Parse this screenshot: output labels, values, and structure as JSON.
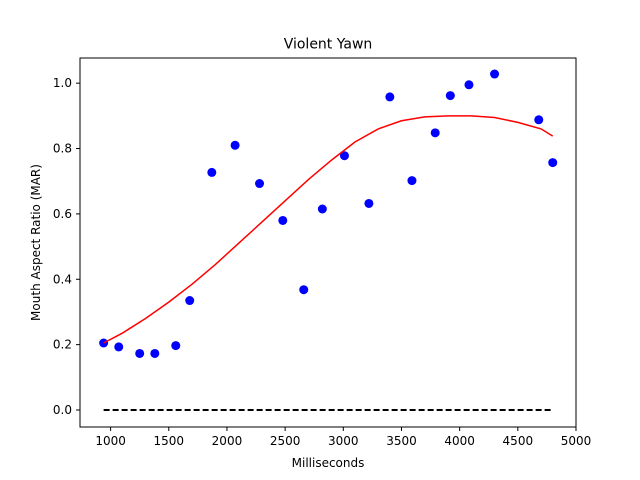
{
  "chart_data": {
    "type": "scatter",
    "title": "Violent Yawn",
    "xlabel": "Milliseconds",
    "ylabel": "Mouth Aspect Ratio (MAR)",
    "xlim": [
      737,
      5000
    ],
    "ylim": [
      -0.052,
      1.077
    ],
    "xticks": [
      1000,
      1500,
      2000,
      2500,
      3000,
      3500,
      4000,
      4500,
      5000
    ],
    "yticks": [
      0.0,
      0.2,
      0.4,
      0.6,
      0.8,
      1.0
    ],
    "ytick_labels": [
      "0.0",
      "0.2",
      "0.4",
      "0.6",
      "0.8",
      "1.0"
    ],
    "grid": false,
    "series": [
      {
        "kind": "points",
        "color": "#0000ff",
        "x": [
          940,
          1070,
          1250,
          1380,
          1560,
          1680,
          1870,
          2070,
          2280,
          2480,
          2660,
          2820,
          3010,
          3220,
          3400,
          3590,
          3790,
          3920,
          4080,
          4300,
          4680,
          4800
        ],
        "y": [
          0.205,
          0.193,
          0.173,
          0.173,
          0.197,
          0.335,
          0.727,
          0.81,
          0.693,
          0.58,
          0.368,
          0.615,
          0.778,
          0.632,
          0.958,
          0.702,
          0.848,
          0.962,
          0.995,
          1.028,
          0.888,
          0.757
        ]
      },
      {
        "kind": "line",
        "color": "#ff0000",
        "x": [
          940,
          1100,
          1300,
          1500,
          1700,
          1900,
          2100,
          2300,
          2500,
          2700,
          2900,
          3100,
          3300,
          3500,
          3700,
          3900,
          4100,
          4300,
          4500,
          4700,
          4800
        ],
        "y": [
          0.205,
          0.235,
          0.28,
          0.33,
          0.385,
          0.445,
          0.51,
          0.575,
          0.64,
          0.705,
          0.765,
          0.82,
          0.86,
          0.885,
          0.897,
          0.9,
          0.9,
          0.895,
          0.88,
          0.86,
          0.838
        ]
      },
      {
        "kind": "dashed-line",
        "color": "#000000",
        "x": [
          940,
          4800
        ],
        "y": [
          0.0,
          0.0
        ]
      }
    ]
  }
}
